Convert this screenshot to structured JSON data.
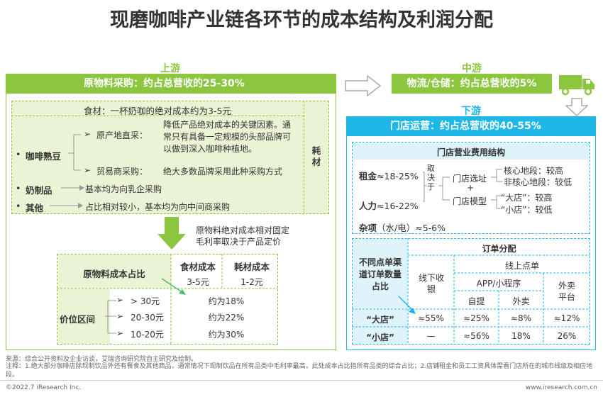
{
  "title": "现磨咖啡产业链各环节的成本结构及利润分配",
  "upstream": {
    "stage": "上游",
    "bar": "原物料采购：约占总营收的25-30%",
    "ingredients": {
      "header": "食材：一杯奶咖的绝对成本约为3-5元",
      "consumables": "耗材",
      "coffee_bean": "咖啡熟豆",
      "direct_label": "原产地直采：",
      "direct_text": "降低产品绝对成本的关键因素。通常只有具备一定规模的头部品牌可以做到深入咖啡种植地。",
      "trader_label": "贸易商采购：",
      "trader_text": "绝大多数品牌采用此种采购方式",
      "dairy": "奶制品",
      "dairy_text": "基本均为向乳企采购",
      "other": "其他",
      "other_text": "占比相对较小，基本均为向中间商采购"
    },
    "arrow_note_1": "原物料绝对成本相对固定",
    "arrow_note_2": "毛利率取决于产品定价",
    "table": {
      "title": "原物料成本占比",
      "col1": "食材成本",
      "col2": "耗材成本",
      "val1": "3-5元",
      "val2": "1-2元",
      "price_label": "价位区间",
      "rows": [
        {
          "range": "> 30元",
          "pct": "约为18%"
        },
        {
          "range": "20-30元",
          "pct": "约为22%"
        },
        {
          "range": "10-20元",
          "pct": "约为30%"
        }
      ]
    }
  },
  "midstream": {
    "stage": "中游",
    "bar": "物流/仓储：约占总营收的5%"
  },
  "downstream": {
    "stage": "下游",
    "bar": "门店运营：约占总营收的40-55%",
    "expense": {
      "header": "门店营业费用结构",
      "rent_label": "租金",
      "rent_value": "≈18-25%",
      "labor_label": "人力",
      "labor_value": "≈16-22%",
      "misc_label": "杂项",
      "misc_value": "（水/电）≈5-6%",
      "depends": "取决于",
      "site": "门店选址",
      "plus": "+",
      "model": "门店模型",
      "core": "核心地段：较高",
      "noncore": "非核心地段：较低",
      "big": "“大店”：较高",
      "small": "“小店”：较低"
    },
    "orders": {
      "left_title": "不同点单渠道订单数量占比",
      "header": "订单分配",
      "offline": "线下收银",
      "online": "线上点单",
      "app": "APP/小程序",
      "self": "自提",
      "delivery": "外卖",
      "platform": "外卖平台",
      "rows": [
        {
          "label": "“大店”",
          "offline": "≈55%",
          "self": "≈25%",
          "delivery": "≈8%",
          "platform": "≈12%"
        },
        {
          "label": "“小店”",
          "offline": "—",
          "self": "≈56%",
          "delivery": "18%",
          "platform": "26%"
        }
      ]
    }
  },
  "footer": {
    "source": "来源：综合公开资料及企业访谈，艾瑞咨询研究院自主研究及绘制。",
    "note": "注释：1.绝大部分咖啡店除现制饮品外还有餐食及其他商品，通常情况下现制饮品在所有品类中毛利率最高，此处成本占比指所有品类的综合占比；2.店铺租金和员工工资具体需看门店所在的城市线级及相应地段。",
    "copyright": "©2022.7 iResearch Inc.",
    "url": "www.iresearch.com.cn"
  },
  "colors": {
    "green": "#8cc63f",
    "blue": "#1fb6e8",
    "light_green": "#ebf3d5",
    "light_blue": "#dff3fb"
  }
}
